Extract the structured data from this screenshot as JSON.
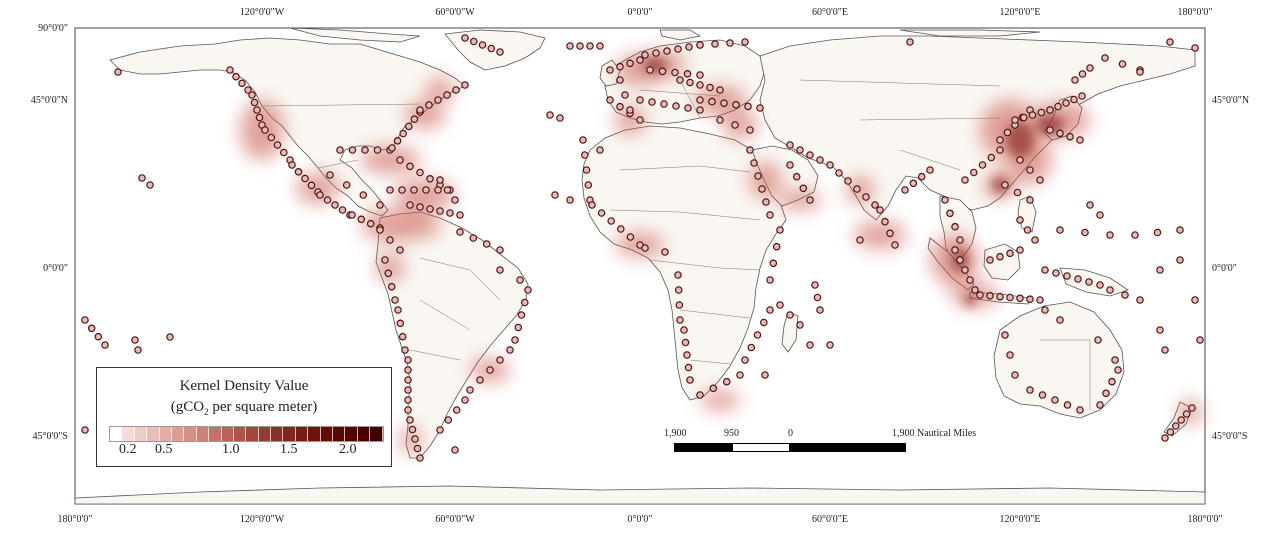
{
  "map": {
    "top_labels": [
      "120°0'0\"W",
      "60°0'0\"W",
      "0°0'0\"",
      "60°0'0\"E",
      "120°0'0\"E",
      "180°0'0\""
    ],
    "bottom_labels": [
      "180°0'0\"",
      "120°0'0\"W",
      "60°0'0\"W",
      "0°0'0\"",
      "60°0'0\"E",
      "120°0'0\"E",
      "180°0'0\""
    ],
    "left_labels": [
      "90°0'0\"",
      "45°0'0\"N",
      "0°0'0\"",
      "45°0'0\"S"
    ],
    "right_labels": [
      "45°0'0\"N",
      "0°0'0\"",
      "45°0'0\"S"
    ],
    "colors": {
      "ocean": "#ffffff",
      "land": "#faf7f2",
      "border": "#555555",
      "point_fill": "#e9b8b8",
      "point_stroke": "#4a1510",
      "density": "#a3392f"
    }
  },
  "legend": {
    "title_line1": "Kernel Density Value",
    "title_line2_prefix": "(gCO",
    "title_line2_sub": "2",
    "title_line2_suffix": " per square meter)",
    "ticks": [
      "0.2",
      "0.5",
      "1.0",
      "1.5",
      "2.0"
    ],
    "ramp_colors": [
      "#ffffff",
      "#f6dcd8",
      "#f0ccc7",
      "#eabdb6",
      "#e3aea6",
      "#dc9f96",
      "#d49086",
      "#cc8176",
      "#c37267",
      "#b96358",
      "#ae5449",
      "#a3463c",
      "#983a30",
      "#8d2f26",
      "#82251c",
      "#781c14",
      "#6e140d",
      "#640d07",
      "#5a0803",
      "#510401",
      "#480100",
      "#420000"
    ]
  },
  "scale": {
    "labels": [
      "1,900",
      "950",
      "0",
      "1,900 Nautical Miles"
    ]
  }
}
